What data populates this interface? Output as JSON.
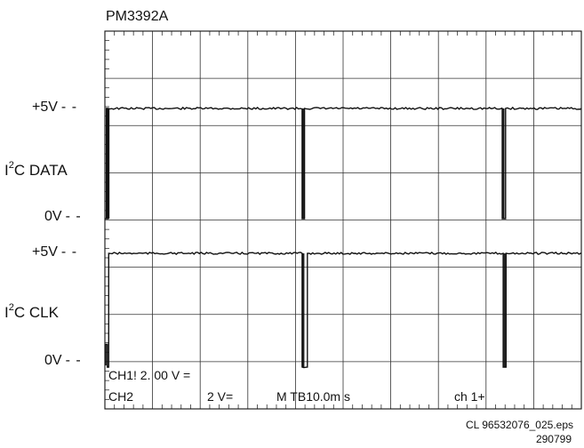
{
  "header": {
    "instrument": "PM3392A"
  },
  "levels": {
    "ch1_high": "+5V",
    "ch1_low": "0V",
    "ch2_high": "+5V",
    "ch2_low": "0V",
    "ref_dash": "- -"
  },
  "channels": {
    "ch1": {
      "prefix": "I",
      "sup": "2",
      "suffix": "C DATA"
    },
    "ch2": {
      "prefix": "I",
      "sup": "2",
      "suffix": "C CLK"
    }
  },
  "readout": {
    "line1": "CH1! 2. 00 V =",
    "ch2_label": "CH2",
    "ch2_setting": "2   V=",
    "timebase": "M  TB10.0m s",
    "trigger": "ch  1+"
  },
  "footer": {
    "reference": "CL 96532076_025.eps",
    "date": "290799"
  },
  "chart_data": {
    "type": "line",
    "title": "PM3392A",
    "xlabel": "",
    "ylabel": "",
    "grid": true,
    "x_divisions": 10,
    "y_divisions": 8,
    "timebase": "10.0 ms/div",
    "xlim": [
      0,
      10
    ],
    "series": [
      {
        "name": "I2C DATA",
        "ylim": [
          0,
          5
        ],
        "points": [
          [
            0.0,
            0
          ],
          [
            0.03,
            0
          ],
          [
            0.03,
            5
          ],
          [
            0.05,
            5
          ],
          [
            0.05,
            0
          ],
          [
            0.07,
            0
          ],
          [
            0.07,
            5
          ],
          [
            4.14,
            5
          ],
          [
            4.14,
            0
          ],
          [
            4.19,
            0
          ],
          [
            4.19,
            5
          ],
          [
            8.34,
            5
          ],
          [
            8.34,
            0
          ],
          [
            8.41,
            0
          ],
          [
            8.41,
            5
          ],
          [
            10.0,
            5
          ]
        ]
      },
      {
        "name": "I2C CLK",
        "ylim": [
          0,
          5
        ],
        "points": [
          [
            0.0,
            0.1
          ],
          [
            0.02,
            0.1
          ],
          [
            0.02,
            1.0
          ],
          [
            0.05,
            1.0
          ],
          [
            0.05,
            0
          ],
          [
            0.08,
            0
          ],
          [
            0.08,
            5
          ],
          [
            4.14,
            5
          ],
          [
            4.14,
            0
          ],
          [
            4.25,
            0
          ],
          [
            4.25,
            5
          ],
          [
            8.36,
            5
          ],
          [
            8.36,
            0
          ],
          [
            8.42,
            0
          ],
          [
            8.42,
            5
          ],
          [
            10.0,
            5
          ]
        ]
      }
    ],
    "annotations": [
      "+5V",
      "0V",
      "+5V",
      "0V"
    ]
  }
}
